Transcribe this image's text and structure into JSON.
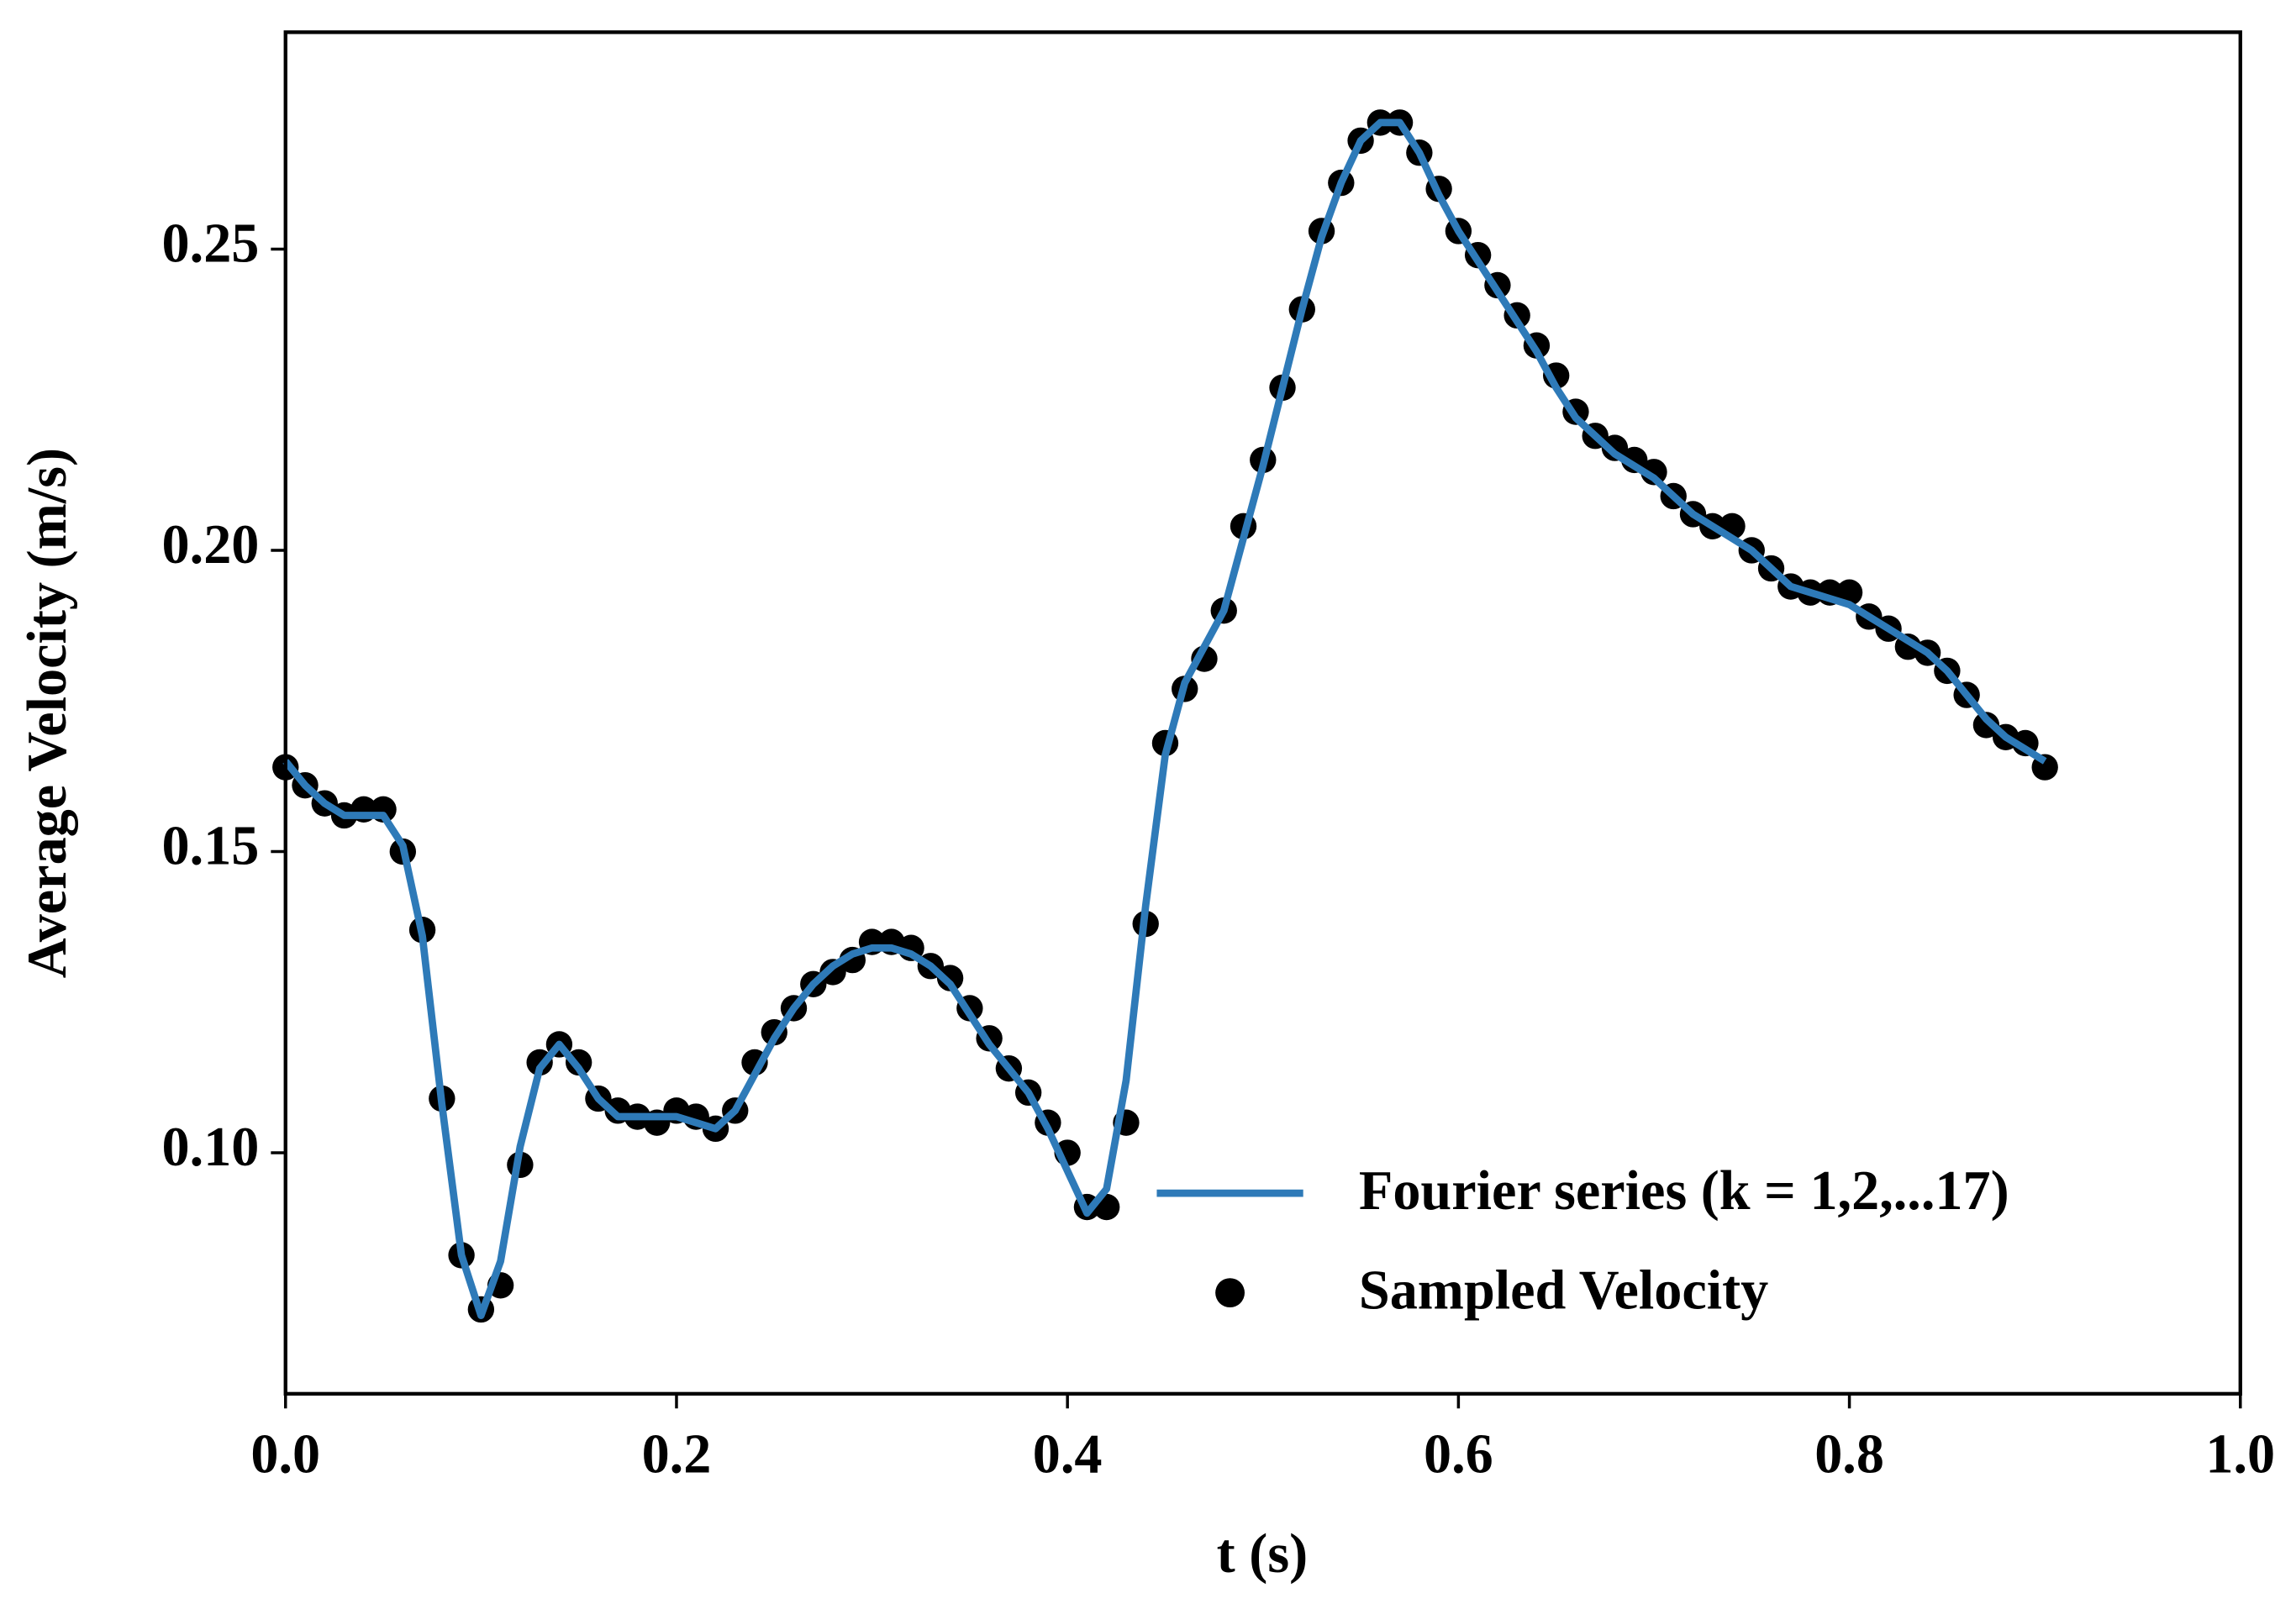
{
  "chart_data": {
    "type": "line",
    "x_label": "t (s)",
    "y_label": "Average Velocity (m/s)",
    "x": [
      0,
      0.01,
      0.02,
      0.03,
      0.04,
      0.05,
      0.06,
      0.07,
      0.08,
      0.09,
      0.1,
      0.11,
      0.12,
      0.13,
      0.14,
      0.15,
      0.16,
      0.17,
      0.18,
      0.19,
      0.2,
      0.21,
      0.22,
      0.23,
      0.24,
      0.25,
      0.26,
      0.27,
      0.28,
      0.29,
      0.3,
      0.31,
      0.32,
      0.33,
      0.34,
      0.35,
      0.36,
      0.37,
      0.38,
      0.39,
      0.4,
      0.41,
      0.42,
      0.43,
      0.44,
      0.45,
      0.46,
      0.47,
      0.48,
      0.49,
      0.5,
      0.51,
      0.52,
      0.53,
      0.54,
      0.55,
      0.56,
      0.57,
      0.58,
      0.59,
      0.6,
      0.61,
      0.62,
      0.63,
      0.64,
      0.65,
      0.66,
      0.67,
      0.68,
      0.69,
      0.7,
      0.71,
      0.72,
      0.73,
      0.74,
      0.75,
      0.76,
      0.77,
      0.78,
      0.79,
      0.8,
      0.81,
      0.82,
      0.83,
      0.84,
      0.85,
      0.86,
      0.87,
      0.88,
      0.89,
      0.9
    ],
    "series": [
      {
        "name": "Fourier series (k = 1,2,...17)",
        "mode": "line",
        "color": "#2e7ab8",
        "values": [
          0.165,
          0.161,
          0.158,
          0.156,
          0.156,
          0.156,
          0.151,
          0.136,
          0.108,
          0.083,
          0.073,
          0.082,
          0.101,
          0.114,
          0.118,
          0.114,
          0.109,
          0.106,
          0.106,
          0.106,
          0.106,
          0.105,
          0.104,
          0.107,
          0.113,
          0.119,
          0.124,
          0.128,
          0.131,
          0.133,
          0.134,
          0.134,
          0.133,
          0.131,
          0.128,
          0.123,
          0.118,
          0.114,
          0.11,
          0.104,
          0.097,
          0.09,
          0.094,
          0.112,
          0.141,
          0.166,
          0.178,
          0.184,
          0.19,
          0.202,
          0.214,
          0.227,
          0.24,
          0.252,
          0.261,
          0.268,
          0.271,
          0.271,
          0.266,
          0.259,
          0.253,
          0.248,
          0.243,
          0.238,
          0.233,
          0.227,
          0.222,
          0.219,
          0.216,
          0.214,
          0.212,
          0.209,
          0.206,
          0.204,
          0.202,
          0.2,
          0.197,
          0.194,
          0.193,
          0.192,
          0.191,
          0.189,
          0.187,
          0.185,
          0.183,
          0.18,
          0.176,
          0.172,
          0.169,
          0.167,
          0.165
        ]
      },
      {
        "name": "Sampled Velocity",
        "mode": "markers",
        "color": "#000000",
        "values": [
          0.164,
          0.161,
          0.158,
          0.156,
          0.157,
          0.157,
          0.15,
          0.137,
          0.109,
          0.083,
          0.074,
          0.078,
          0.098,
          0.115,
          0.118,
          0.115,
          0.109,
          0.107,
          0.106,
          0.105,
          0.107,
          0.106,
          0.104,
          0.107,
          0.115,
          0.12,
          0.124,
          0.128,
          0.13,
          0.132,
          0.135,
          0.135,
          0.134,
          0.131,
          0.129,
          0.124,
          0.119,
          0.114,
          0.11,
          0.105,
          0.1,
          0.091,
          0.091,
          0.105,
          0.138,
          0.168,
          0.177,
          0.182,
          0.19,
          0.204,
          0.215,
          0.227,
          0.24,
          0.253,
          0.261,
          0.268,
          0.271,
          0.271,
          0.266,
          0.26,
          0.253,
          0.249,
          0.244,
          0.239,
          0.234,
          0.229,
          0.223,
          0.219,
          0.217,
          0.215,
          0.213,
          0.209,
          0.206,
          0.204,
          0.204,
          0.2,
          0.197,
          0.194,
          0.193,
          0.193,
          0.193,
          0.189,
          0.187,
          0.184,
          0.183,
          0.18,
          0.176,
          0.171,
          0.169,
          0.168,
          0.164
        ]
      }
    ],
    "xlim": [
      0,
      1
    ],
    "ylim": [
      0.06,
      0.286
    ],
    "xticks": [
      {
        "value": 0,
        "label": "0.0"
      },
      0.2,
      0.4,
      0.6,
      0.8,
      {
        "value": 1,
        "label": "1.0"
      }
    ],
    "yticks": [
      {
        "value": 0.1,
        "label": "0.10"
      },
      0.15,
      {
        "value": 0.2,
        "label": "0.20"
      },
      0.25
    ],
    "legend": "lower right"
  }
}
